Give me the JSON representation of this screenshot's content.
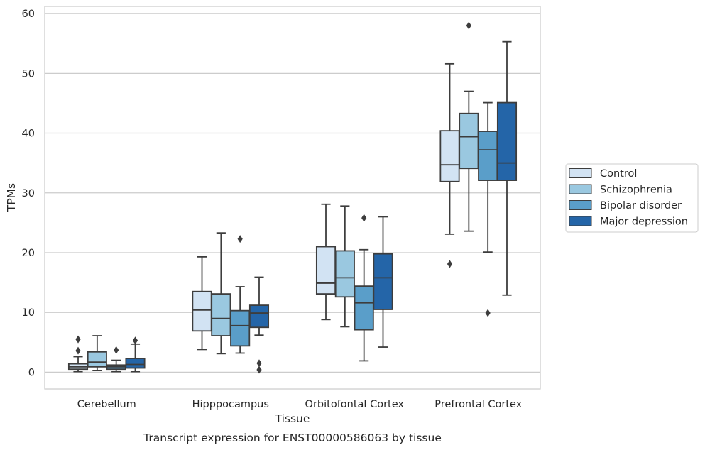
{
  "caption": "Transcript expression for ENST00000586063 by tissue",
  "chart_data": {
    "type": "box",
    "xlabel": "Tissue",
    "ylabel": "TPMs",
    "ylim": [
      -2.8,
      61.2
    ],
    "yticks": [
      0,
      10,
      20,
      30,
      40,
      50,
      60
    ],
    "grid": "horizontal",
    "legend_position": "right",
    "categories": [
      "Cerebellum",
      "Hipppocampus",
      "Orbitofontal Cortex",
      "Prefrontal Cortex"
    ],
    "series": [
      {
        "name": "Control",
        "color": "#d2e3f3",
        "boxes": [
          {
            "whislo": 0.1,
            "q1": 0.5,
            "med": 0.9,
            "q3": 1.4,
            "whishi": 2.6,
            "fliers": [
              3.6,
              5.5
            ]
          },
          {
            "whislo": 3.8,
            "q1": 6.9,
            "med": 10.4,
            "q3": 13.5,
            "whishi": 19.3,
            "fliers": []
          },
          {
            "whislo": 8.8,
            "q1": 13.1,
            "med": 14.9,
            "q3": 21.0,
            "whishi": 28.1,
            "fliers": []
          },
          {
            "whislo": 23.1,
            "q1": 31.9,
            "med": 34.7,
            "q3": 40.4,
            "whishi": 51.6,
            "fliers": [
              18.1
            ]
          }
        ]
      },
      {
        "name": "Schizophrenia",
        "color": "#9ac8e0",
        "boxes": [
          {
            "whislo": 0.3,
            "q1": 0.9,
            "med": 1.7,
            "q3": 3.4,
            "whishi": 6.1,
            "fliers": []
          },
          {
            "whislo": 3.1,
            "q1": 6.1,
            "med": 9.0,
            "q3": 13.1,
            "whishi": 23.3,
            "fliers": []
          },
          {
            "whislo": 7.6,
            "q1": 12.6,
            "med": 15.8,
            "q3": 20.3,
            "whishi": 27.8,
            "fliers": []
          },
          {
            "whislo": 23.6,
            "q1": 34.1,
            "med": 39.4,
            "q3": 43.3,
            "whishi": 47.0,
            "fliers": [
              58.0
            ]
          }
        ]
      },
      {
        "name": "Bipolar disorder",
        "color": "#5a9ec9",
        "boxes": [
          {
            "whislo": 0.1,
            "q1": 0.5,
            "med": 0.9,
            "q3": 1.2,
            "whishi": 2.0,
            "fliers": [
              3.7
            ]
          },
          {
            "whislo": 3.2,
            "q1": 4.4,
            "med": 7.8,
            "q3": 10.3,
            "whishi": 14.3,
            "fliers": [
              22.3
            ]
          },
          {
            "whislo": 1.9,
            "q1": 7.1,
            "med": 11.6,
            "q3": 14.4,
            "whishi": 20.5,
            "fliers": [
              25.8
            ]
          },
          {
            "whislo": 20.1,
            "q1": 32.1,
            "med": 37.2,
            "q3": 40.3,
            "whishi": 45.1,
            "fliers": [
              9.9
            ]
          }
        ]
      },
      {
        "name": "Major depression",
        "color": "#2465a8",
        "boxes": [
          {
            "whislo": 0.1,
            "q1": 0.7,
            "med": 1.3,
            "q3": 2.3,
            "whishi": 4.7,
            "fliers": [
              5.3
            ]
          },
          {
            "whislo": 6.2,
            "q1": 7.5,
            "med": 9.9,
            "q3": 11.2,
            "whishi": 15.9,
            "fliers": [
              0.4,
              1.5
            ]
          },
          {
            "whislo": 4.2,
            "q1": 10.5,
            "med": 15.8,
            "q3": 19.8,
            "whishi": 26.0,
            "fliers": []
          },
          {
            "whislo": 12.9,
            "q1": 32.1,
            "med": 35.0,
            "q3": 45.1,
            "whishi": 55.3,
            "fliers": []
          }
        ]
      }
    ]
  }
}
